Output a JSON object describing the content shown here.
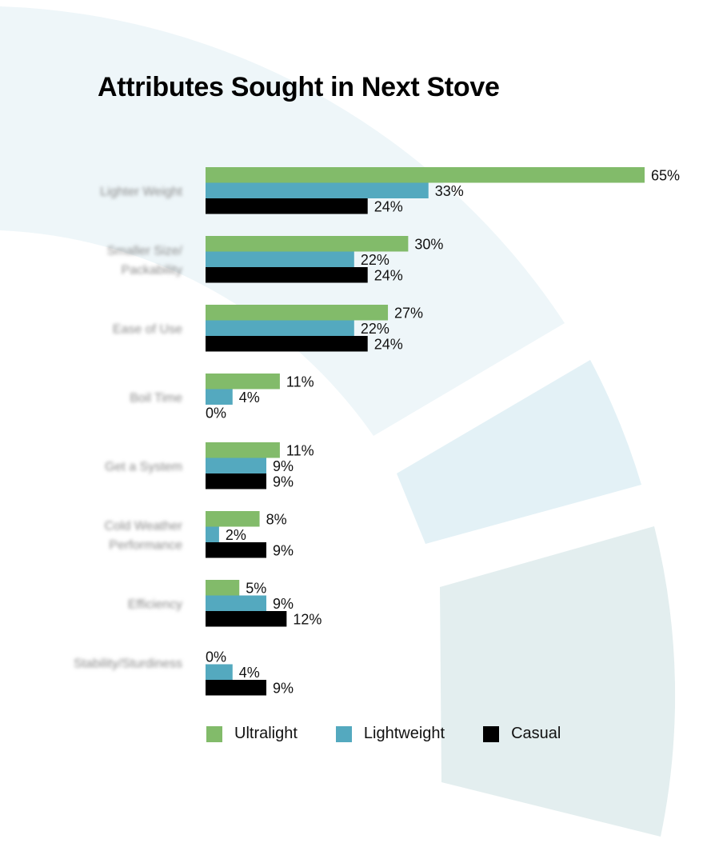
{
  "chart_data": {
    "type": "bar",
    "orientation": "horizontal",
    "title": "Attributes Sought in Next Stove",
    "categories": [
      "Lighter Weight",
      "Smaller Size/ Packability",
      "Ease of Use",
      "Boil Time",
      "Get a System",
      "Cold Weather Performance",
      "Efficiency",
      "Stability/Sturdiness"
    ],
    "series": [
      {
        "name": "Ultralight",
        "color": "#82bb6a",
        "values": [
          65,
          30,
          27,
          11,
          11,
          8,
          5,
          0
        ]
      },
      {
        "name": "Lightweight",
        "color": "#54a9bf",
        "values": [
          33,
          22,
          22,
          4,
          9,
          2,
          9,
          4
        ]
      },
      {
        "name": "Casual",
        "color": "#000000",
        "values": [
          24,
          24,
          24,
          0,
          9,
          9,
          12,
          9
        ]
      }
    ],
    "value_suffix": "%",
    "xlim": [
      0,
      65
    ],
    "grid": false,
    "legend_position": "bottom"
  }
}
